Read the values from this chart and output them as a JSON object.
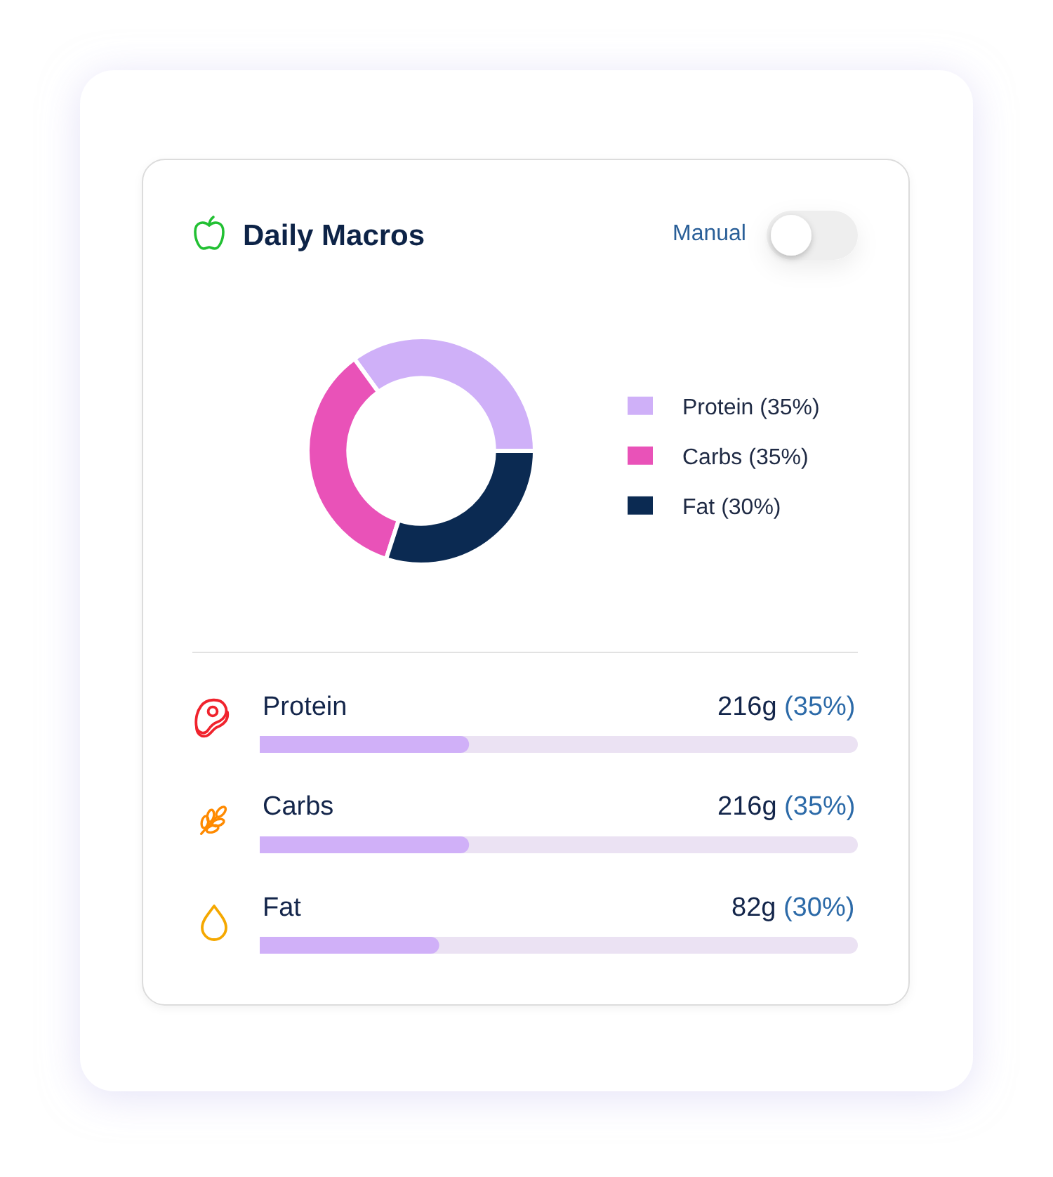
{
  "chart_data": [
    {
      "type": "donut",
      "title": "Daily Macros",
      "annotations": [
        "Manual"
      ],
      "categories": [
        "Protein (35%)",
        "Carbs (35%)",
        "Fat (30%)"
      ],
      "values": [
        35,
        35,
        30
      ],
      "colors": [
        "#cfb0f8",
        "#e952b8",
        "#0b2a52"
      ],
      "legend": "right"
    },
    {
      "type": "bar",
      "orientation": "horizontal",
      "categories": [
        "Protein",
        "Carbs",
        "Fat"
      ],
      "values": [
        35,
        35,
        30
      ],
      "color": "#d0b0f8",
      "value_labels": [
        "216g (35%)",
        "216g (35%)",
        "82g (30%)"
      ],
      "xlim": [
        0,
        100
      ],
      "tick_labels": "y"
    }
  ]
}
